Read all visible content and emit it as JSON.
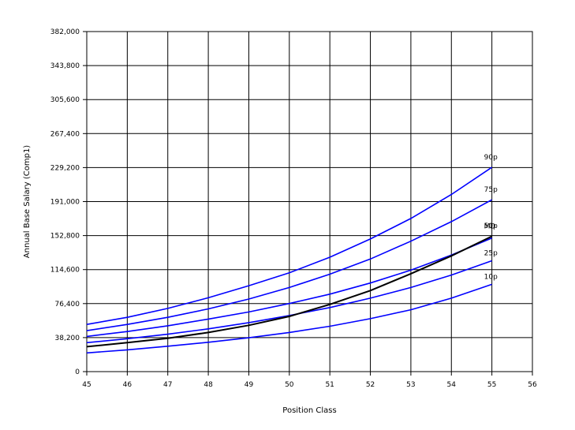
{
  "chart_data": {
    "type": "line",
    "title": "",
    "xlabel": "Position Class",
    "ylabel": "Annual Base Salary (Comp1)",
    "xlim": [
      45,
      56
    ],
    "ylim": [
      0,
      382000
    ],
    "x_ticks": [
      "45",
      "46",
      "47",
      "48",
      "49",
      "50",
      "51",
      "52",
      "53",
      "54",
      "55",
      "56"
    ],
    "y_ticks": [
      "0",
      "38,200",
      "76,400",
      "114,600",
      "152,800",
      "191,000",
      "229,200",
      "267,400",
      "305,600",
      "343,800",
      "382,000"
    ],
    "grid": true,
    "legend": "none",
    "x": [
      45,
      46,
      47,
      48,
      49,
      50,
      51,
      52,
      53,
      54,
      55
    ],
    "series": [
      {
        "name": "90p",
        "color": "#0000ff",
        "values": [
          53000,
          61000,
          71000,
          83000,
          96500,
          111000,
          128500,
          149000,
          172000,
          199000,
          229500
        ]
      },
      {
        "name": "75p",
        "color": "#0000ff",
        "values": [
          46000,
          53000,
          61000,
          70500,
          81500,
          94500,
          109500,
          126500,
          146500,
          168500,
          193000
        ]
      },
      {
        "name": "50p",
        "color": "#0000ff",
        "values": [
          39500,
          45000,
          51500,
          59000,
          67000,
          76500,
          87000,
          99500,
          114000,
          131000,
          150000
        ]
      },
      {
        "name": "25p",
        "color": "#0000ff",
        "values": [
          32500,
          37000,
          42000,
          48000,
          55000,
          63000,
          72000,
          82500,
          94500,
          108500,
          124500
        ]
      },
      {
        "name": "10p",
        "color": "#0000ff",
        "values": [
          21000,
          24500,
          28500,
          33000,
          38000,
          44000,
          51000,
          59500,
          69500,
          82500,
          98000
        ]
      },
      {
        "name": "MD",
        "color": "#000000",
        "values": [
          28000,
          32500,
          37500,
          44000,
          52000,
          62000,
          75500,
          91000,
          110000,
          130000,
          152000
        ]
      }
    ],
    "series_labels_shown": [
      "90p",
      "75p",
      "50p",
      "MD",
      "25p",
      "10p"
    ]
  }
}
